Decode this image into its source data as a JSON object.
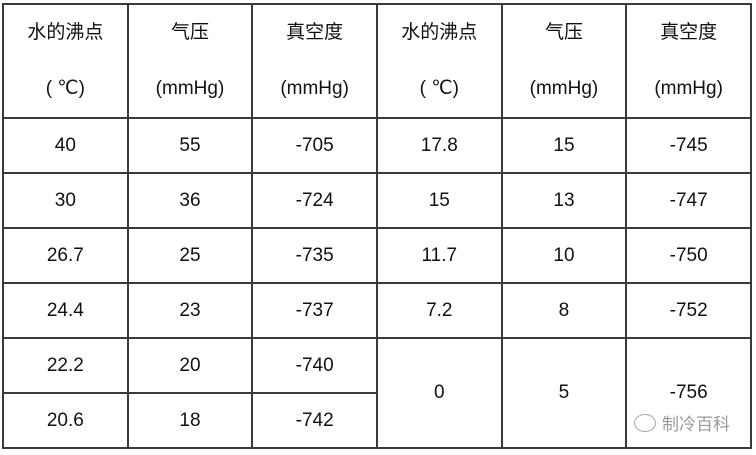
{
  "headers": [
    {
      "line1": "水的沸点",
      "line2": "( ℃)"
    },
    {
      "line1": "气压",
      "line2": "(mmHg)"
    },
    {
      "line1": "真空度",
      "line2": "(mmHg)"
    },
    {
      "line1": "水的沸点",
      "line2": "( ℃)"
    },
    {
      "line1": "气压",
      "line2": "(mmHg)"
    },
    {
      "line1": "真空度",
      "line2": "(mmHg)"
    }
  ],
  "left_rows": [
    [
      "40",
      "55",
      "-705"
    ],
    [
      "30",
      "36",
      "-724"
    ],
    [
      "26.7",
      "25",
      "-735"
    ],
    [
      "24.4",
      "23",
      "-737"
    ],
    [
      "22.2",
      "20",
      "-740"
    ],
    [
      "20.6",
      "18",
      "-742"
    ]
  ],
  "right_rows": [
    [
      "17.8",
      "15",
      "-745"
    ],
    [
      "15",
      "13",
      "-747"
    ],
    [
      "11.7",
      "10",
      "-750"
    ],
    [
      "7.2",
      "8",
      "-752"
    ],
    [
      "0",
      "5",
      "-756"
    ]
  ],
  "watermark": {
    "text": "制冷百科",
    "icon": "wechat-icon"
  }
}
